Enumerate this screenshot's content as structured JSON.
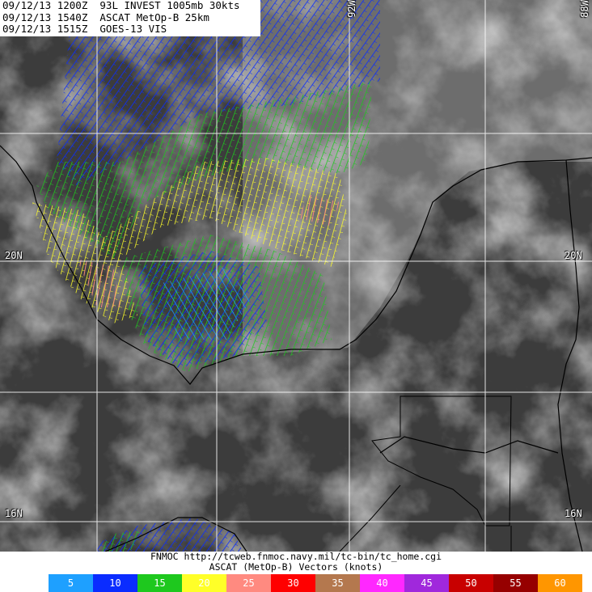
{
  "header": {
    "lines": [
      "09/12/13 1200Z  93L INVEST 1005mb 30kts",
      "09/12/13 1540Z  ASCAT MetOp-B 25km",
      "09/12/13 1515Z  GOES-13 VIS"
    ]
  },
  "grid_labels": [
    {
      "label": "92W",
      "position": "top"
    },
    {
      "label": "88W",
      "position": "top-right"
    },
    {
      "label": "20N",
      "position": "left"
    },
    {
      "label": "20N",
      "position": "right"
    },
    {
      "label": "16N",
      "position": "left"
    },
    {
      "label": "16N",
      "position": "right"
    }
  ],
  "footer": {
    "source": "FNMOC http://tcweb.fnmoc.navy.mil/tc-bin/tc_home.cgi",
    "legend_title": "ASCAT (MetOp-B) Vectors (knots)"
  },
  "legend": [
    {
      "label": "5",
      "color": "#1ea0ff"
    },
    {
      "label": "10",
      "color": "#0a2cff"
    },
    {
      "label": "15",
      "color": "#1ec81e"
    },
    {
      "label": "20",
      "color": "#ffff28"
    },
    {
      "label": "25",
      "color": "#ff8a80"
    },
    {
      "label": "30",
      "color": "#ff0000"
    },
    {
      "label": "35",
      "color": "#b4784e"
    },
    {
      "label": "40",
      "color": "#ff28ff"
    },
    {
      "label": "45",
      "color": "#a028dc"
    },
    {
      "label": "50",
      "color": "#c80000"
    },
    {
      "label": "55",
      "color": "#960000"
    },
    {
      "label": "60",
      "color": "#ff9600"
    }
  ]
}
